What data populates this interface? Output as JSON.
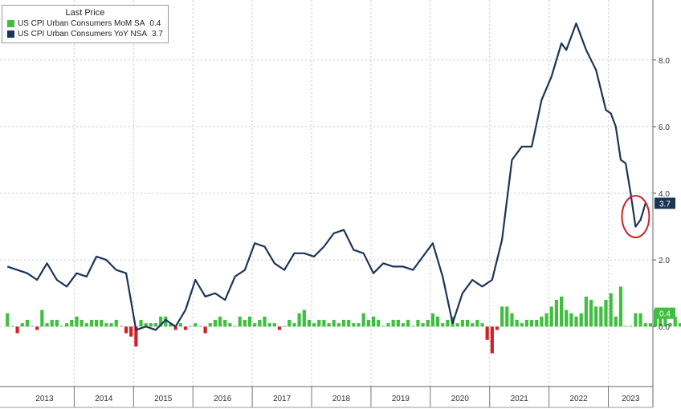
{
  "chart_data": {
    "type": "line",
    "legend": {
      "header": "Last Price",
      "placement": "top-left",
      "entries": [
        {
          "name": "US CPI Urban Consumers MoM SA",
          "last": "0.4",
          "color": "#3fbf3f"
        },
        {
          "name": "US CPI Urban Consumers YoY NSA",
          "last": "3.7",
          "color": "#1c3557"
        }
      ]
    },
    "x_categories": [
      "2013",
      "2014",
      "2015",
      "2016",
      "2017",
      "2018",
      "2019",
      "2020",
      "2021",
      "2022",
      "2023"
    ],
    "y_ticks": [
      "8.0",
      "6.0",
      "4.0",
      "2.0",
      "0.0"
    ],
    "ylim": [
      -1.8,
      9.8
    ],
    "grid": true,
    "last_value_labels": [
      {
        "series": "US CPI Urban Consumers YoY NSA",
        "text": "3.7",
        "value": 3.7,
        "color": "#1c3557"
      },
      {
        "series": "US CPI Urban Consumers MoM SA",
        "text": "0.4",
        "value": 0.4,
        "color": "#3fbf3f"
      }
    ],
    "annotation": {
      "type": "circle",
      "around": "2023 latest YoY values",
      "color": "#d0202a"
    },
    "series": [
      {
        "name": "US CPI Urban Consumers YoY NSA",
        "kind": "line",
        "color": "#1c3557",
        "x": [
          "2012-11",
          "2013-01",
          "2013-03",
          "2013-05",
          "2013-07",
          "2013-09",
          "2013-11",
          "2014-01",
          "2014-03",
          "2014-05",
          "2014-07",
          "2014-09",
          "2014-11",
          "2015-01",
          "2015-03",
          "2015-05",
          "2015-07",
          "2015-09",
          "2015-11",
          "2016-01",
          "2016-03",
          "2016-05",
          "2016-07",
          "2016-09",
          "2016-11",
          "2017-01",
          "2017-03",
          "2017-05",
          "2017-07",
          "2017-09",
          "2017-11",
          "2018-01",
          "2018-03",
          "2018-05",
          "2018-07",
          "2018-09",
          "2018-11",
          "2019-01",
          "2019-03",
          "2019-05",
          "2019-07",
          "2019-09",
          "2019-11",
          "2020-01",
          "2020-03",
          "2020-05",
          "2020-07",
          "2020-09",
          "2020-11",
          "2021-01",
          "2021-03",
          "2021-05",
          "2021-07",
          "2021-09",
          "2021-11",
          "2022-01",
          "2022-03",
          "2022-04",
          "2022-06",
          "2022-08",
          "2022-10",
          "2022-12",
          "2023-01",
          "2023-02",
          "2023-03",
          "2023-04",
          "2023-05",
          "2023-06",
          "2023-07",
          "2023-08"
        ],
        "values": [
          1.8,
          1.7,
          1.6,
          1.4,
          1.9,
          1.4,
          1.2,
          1.6,
          1.5,
          2.1,
          2.0,
          1.7,
          1.6,
          -0.1,
          0.0,
          -0.1,
          0.2,
          0.0,
          0.5,
          1.4,
          0.9,
          1.0,
          0.8,
          1.5,
          1.7,
          2.5,
          2.4,
          1.9,
          1.7,
          2.2,
          2.2,
          2.1,
          2.4,
          2.8,
          2.9,
          2.3,
          2.2,
          1.6,
          1.9,
          1.8,
          1.8,
          1.7,
          2.1,
          2.5,
          1.5,
          0.1,
          1.0,
          1.4,
          1.2,
          1.4,
          2.6,
          5.0,
          5.4,
          5.4,
          6.8,
          7.5,
          8.5,
          8.3,
          9.1,
          8.3,
          7.7,
          6.5,
          6.4,
          6.0,
          5.0,
          4.9,
          4.0,
          3.0,
          3.2,
          3.7
        ]
      },
      {
        "name": "US CPI Urban Consumers MoM SA",
        "kind": "bar",
        "color_positive": "#3fbf3f",
        "color_negative": "#d0202a",
        "x_start": "2012-11",
        "x_end": "2023-08",
        "values": [
          0.4,
          0.0,
          -0.2,
          0.1,
          0.2,
          0.0,
          -0.1,
          0.5,
          0.1,
          0.2,
          0.2,
          0.0,
          0.1,
          0.2,
          0.3,
          0.2,
          0.1,
          0.2,
          0.2,
          0.2,
          0.1,
          0.1,
          0.2,
          0.0,
          -0.2,
          -0.3,
          -0.6,
          0.2,
          0.1,
          0.1,
          0.1,
          0.3,
          0.3,
          0.1,
          -0.1,
          0.1,
          -0.1,
          0.0,
          0.1,
          0.0,
          -0.2,
          0.1,
          0.2,
          0.3,
          0.2,
          0.1,
          0.0,
          0.3,
          0.2,
          0.3,
          0.1,
          0.2,
          0.3,
          0.1,
          0.1,
          -0.1,
          0.0,
          0.2,
          0.1,
          0.4,
          0.5,
          0.2,
          0.1,
          0.2,
          0.2,
          0.1,
          0.2,
          0.1,
          0.2,
          0.2,
          0.1,
          0.1,
          0.4,
          0.2,
          0.3,
          0.2,
          0.0,
          0.1,
          0.2,
          0.2,
          0.1,
          0.2,
          0.0,
          0.2,
          0.1,
          0.2,
          0.4,
          0.3,
          0.1,
          0.2,
          0.3,
          0.1,
          0.2,
          0.2,
          0.1,
          0.2,
          0.1,
          -0.4,
          -0.8,
          -0.1,
          0.6,
          0.6,
          0.4,
          0.2,
          0.1,
          0.2,
          0.2,
          0.2,
          0.3,
          0.4,
          0.6,
          0.8,
          0.9,
          0.5,
          0.4,
          0.3,
          0.4,
          0.9,
          0.8,
          0.6,
          0.6,
          0.8,
          1.0,
          0.3,
          1.2,
          0.0,
          0.0,
          0.4,
          0.4,
          0.1,
          0.1,
          0.5,
          0.4,
          0.4,
          0.1,
          0.3,
          0.1,
          0.2,
          0.2,
          0.6,
          0.4
        ]
      }
    ]
  }
}
